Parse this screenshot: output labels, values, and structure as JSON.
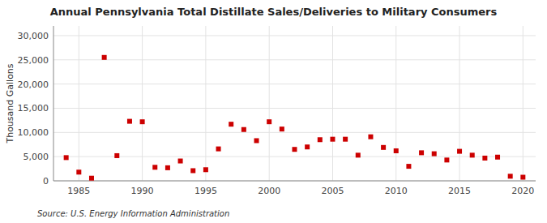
{
  "chart_data": {
    "type": "scatter",
    "title": "Annual Pennsylvania Total Distillate Sales/Deliveries to Military Consumers",
    "ylabel": "Thousand Gallons",
    "source": "Source: U.S. Energy Information Administration",
    "x": [
      1984,
      1985,
      1986,
      1987,
      1988,
      1989,
      1990,
      1991,
      1992,
      1993,
      1994,
      1995,
      1996,
      1997,
      1998,
      1999,
      2000,
      2001,
      2002,
      2003,
      2004,
      2005,
      2006,
      2007,
      2008,
      2009,
      2010,
      2011,
      2012,
      2013,
      2014,
      2015,
      2016,
      2017,
      2018,
      2019,
      2020
    ],
    "values": [
      4800,
      1800,
      550,
      25500,
      5200,
      12300,
      12200,
      2800,
      2700,
      4100,
      2100,
      2300,
      6600,
      11700,
      10600,
      8300,
      12200,
      10700,
      6500,
      7000,
      8500,
      8600,
      8600,
      5300,
      9100,
      6900,
      6200,
      3000,
      5800,
      5600,
      4300,
      6100,
      5300,
      4700,
      4900,
      950,
      750
    ],
    "color": "#cc0000",
    "marker": "square",
    "xlim": [
      1983,
      2021
    ],
    "xticks": [
      1985,
      1990,
      1995,
      2000,
      2005,
      2010,
      2015,
      2020
    ],
    "ylim": [
      0,
      32000
    ],
    "yticks": [
      0,
      {
        "value": 5000,
        "label": "5,000"
      },
      {
        "value": 10000,
        "label": "10,000"
      },
      {
        "value": 15000,
        "label": "15,000"
      },
      {
        "value": 20000,
        "label": "20,000"
      },
      {
        "value": 25000,
        "label": "25,000"
      },
      {
        "value": 30000,
        "label": "30,000"
      }
    ],
    "grid": true
  }
}
